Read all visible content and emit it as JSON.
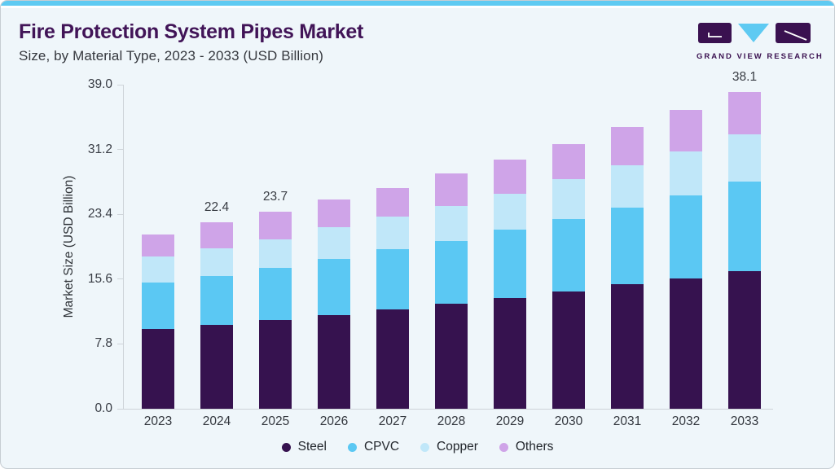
{
  "header": {
    "title": "Fire Protection System Pipes Market",
    "subtitle": "Size, by Material Type, 2023 - 2033 (USD Billion)"
  },
  "logo": {
    "text": "GRAND VIEW RESEARCH",
    "dark_color": "#3a1150",
    "accent_color": "#5ecaf2"
  },
  "chart_data": {
    "type": "bar",
    "stacked": true,
    "title": "Fire Protection System Pipes Market",
    "subtitle": "Size, by Material Type, 2023 - 2033 (USD Billion)",
    "xlabel": "",
    "ylabel": "Market Size (USD Billion)",
    "ylim": [
      0,
      39
    ],
    "yticks": [
      "0.0",
      "7.8",
      "15.6",
      "23.4",
      "31.2",
      "39.0"
    ],
    "grid": false,
    "legend_position": "bottom",
    "categories": [
      "2023",
      "2024",
      "2025",
      "2026",
      "2027",
      "2028",
      "2029",
      "2030",
      "2031",
      "2032",
      "2033"
    ],
    "series": [
      {
        "name": "Steel",
        "color": "#36124f",
        "values": [
          9.6,
          10.1,
          10.7,
          11.3,
          12.0,
          12.6,
          13.3,
          14.1,
          15.0,
          15.7,
          16.6
        ]
      },
      {
        "name": "CPVC",
        "color": "#5bc8f3",
        "values": [
          5.6,
          5.9,
          6.3,
          6.7,
          7.2,
          7.6,
          8.3,
          8.7,
          9.2,
          10.0,
          10.7
        ]
      },
      {
        "name": "Copper",
        "color": "#c0e7f9",
        "values": [
          3.1,
          3.3,
          3.4,
          3.9,
          3.9,
          4.2,
          4.3,
          4.8,
          5.1,
          5.3,
          5.7
        ]
      },
      {
        "name": "Others",
        "color": "#cfa4e8",
        "values": [
          2.7,
          3.1,
          3.3,
          3.3,
          3.5,
          3.9,
          4.1,
          4.2,
          4.6,
          5.0,
          5.1
        ]
      }
    ],
    "bar_value_labels": [
      null,
      "22.4",
      "23.7",
      null,
      null,
      null,
      null,
      null,
      null,
      null,
      "38.1"
    ]
  }
}
